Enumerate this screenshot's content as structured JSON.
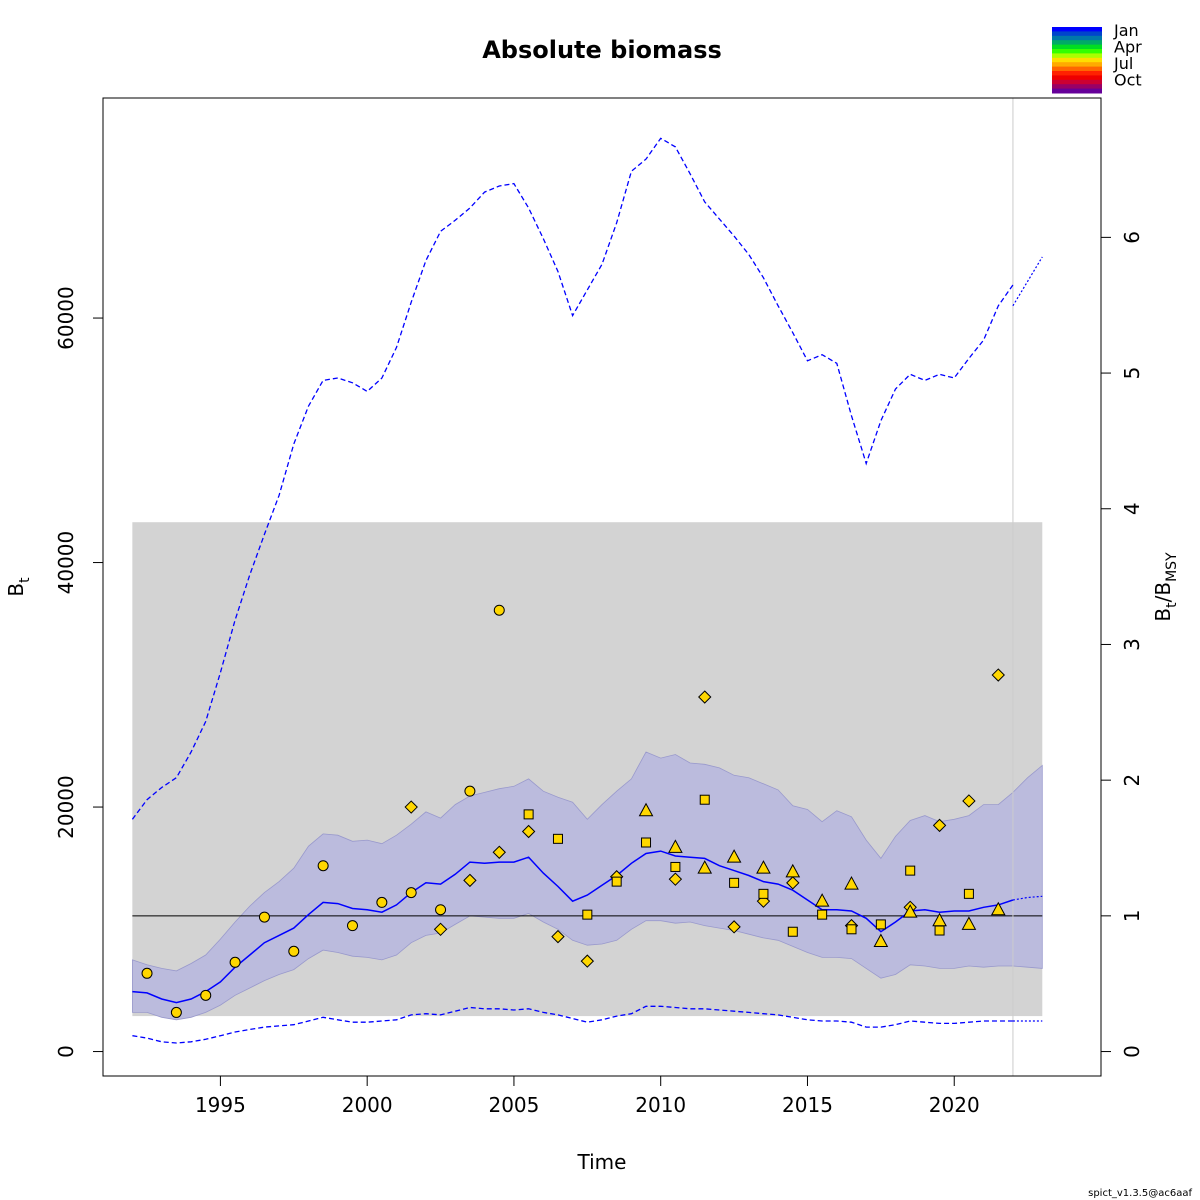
{
  "chart_data": {
    "type": "line",
    "title": "Absolute biomass",
    "xlabel": "Time",
    "ylabel_main": "B",
    "ylabel_sub": "t",
    "ylabel_right_main": "B",
    "ylabel_right_sub1": "t",
    "ylabel_right_slash": "/B",
    "ylabel_right_sub2": "MSY",
    "footer": "spict_v1.3.5@ac6aaf",
    "xlim": [
      1991.0,
      2025.0
    ],
    "ylim": [
      -2000,
      78000
    ],
    "right_axis_scale": 11100,
    "x_ticks": [
      1995,
      2000,
      2005,
      2010,
      2015,
      2020
    ],
    "x_tick_labels": [
      "1995",
      "2000",
      "2005",
      "2010",
      "2015",
      "2020"
    ],
    "y_ticks": [
      0,
      20000,
      40000,
      60000
    ],
    "y_tick_labels": [
      "0",
      "20000",
      "40000",
      "60000"
    ],
    "y2_ticks": [
      0,
      1,
      2,
      3,
      4,
      5,
      6
    ],
    "y2_tick_labels": [
      "0",
      "1",
      "2",
      "3",
      "4",
      "5",
      "6"
    ],
    "legend": {
      "position": "top-right",
      "labels": [
        "Jan",
        "Apr",
        "Jul",
        "Oct"
      ],
      "colors": [
        "#0000ff",
        "#0044cc",
        "#0077aa",
        "#00aa66",
        "#00dd22",
        "#33ff00",
        "#aaff00",
        "#ffdd00",
        "#ffaa00",
        "#ff6600",
        "#ff2200",
        "#ee0000",
        "#cc0033",
        "#990066",
        "#660099"
      ]
    },
    "colors": {
      "estimate": "#0000ff",
      "ci_band": "#bbbbdd",
      "ci_band_stroke": "#9999cc",
      "bmsy_band": "#d3d3d3",
      "points_fill": "#ffd700",
      "bmsy_line": "#000000",
      "vline": "#cccccc"
    },
    "bmsy": 11100,
    "bmsy_band": [
      2900,
      43300
    ],
    "bmsy_band_x": [
      1992.0,
      2023.0
    ],
    "vline_x": 2022.0,
    "estimate": {
      "name": "B_t",
      "x": [
        1992.0,
        1992.5,
        1993.0,
        1993.5,
        1994.0,
        1994.5,
        1995.0,
        1995.5,
        1996.0,
        1996.5,
        1997.0,
        1997.5,
        1998.0,
        1998.5,
        1999.0,
        1999.5,
        2000.0,
        2000.5,
        2001.0,
        2001.5,
        2002.0,
        2002.5,
        2003.0,
        2003.5,
        2004.0,
        2004.5,
        2005.0,
        2005.5,
        2006.0,
        2006.5,
        2007.0,
        2007.5,
        2008.0,
        2008.5,
        2009.0,
        2009.5,
        2010.0,
        2010.5,
        2011.0,
        2011.5,
        2012.0,
        2012.5,
        2013.0,
        2013.5,
        2014.0,
        2014.5,
        2015.0,
        2015.5,
        2016.0,
        2016.5,
        2017.0,
        2017.5,
        2018.0,
        2018.5,
        2019.0,
        2019.5,
        2020.0,
        2020.5,
        2021.0,
        2021.5,
        2022.0
      ],
      "y": [
        4900,
        4800,
        4300,
        4000,
        4300,
        4900,
        5700,
        6900,
        7900,
        8900,
        9500,
        10100,
        11200,
        12200,
        12100,
        11700,
        11600,
        11400,
        12000,
        13000,
        13800,
        13700,
        14500,
        15500,
        15400,
        15500,
        15500,
        15900,
        14600,
        13500,
        12300,
        12800,
        13600,
        14400,
        15400,
        16200,
        16400,
        16000,
        15900,
        15800,
        15200,
        14800,
        14400,
        13900,
        13700,
        13200,
        12400,
        11600,
        11600,
        11500,
        10900,
        9800,
        10600,
        11500,
        11600,
        11400,
        11500,
        11500,
        11800,
        12000,
        12400
      ]
    },
    "estimate_forecast": {
      "x": [
        2022.0,
        2022.5,
        2023.0
      ],
      "y": [
        12400,
        12600,
        12700
      ]
    },
    "ci_upper": {
      "x": [
        1992.0,
        1992.5,
        1993.0,
        1993.5,
        1994.0,
        1994.5,
        1995.0,
        1995.5,
        1996.0,
        1996.5,
        1997.0,
        1997.5,
        1998.0,
        1998.5,
        1999.0,
        1999.5,
        2000.0,
        2000.5,
        2001.0,
        2001.5,
        2002.0,
        2002.5,
        2003.0,
        2003.5,
        2004.0,
        2004.5,
        2005.0,
        2005.5,
        2006.0,
        2006.5,
        2007.0,
        2007.5,
        2008.0,
        2008.5,
        2009.0,
        2009.5,
        2010.0,
        2010.5,
        2011.0,
        2011.5,
        2012.0,
        2012.5,
        2013.0,
        2013.5,
        2014.0,
        2014.5,
        2015.0,
        2015.5,
        2016.0,
        2016.5,
        2017.0,
        2017.5,
        2018.0,
        2018.5,
        2019.0,
        2019.5,
        2020.0,
        2020.5,
        2021.0,
        2021.5,
        2022.0,
        2022.5,
        2023.0
      ],
      "y": [
        7500,
        7100,
        6800,
        6600,
        7200,
        7900,
        9200,
        10600,
        11900,
        13000,
        13900,
        15000,
        16800,
        17800,
        17700,
        17200,
        17300,
        17000,
        17700,
        18600,
        19600,
        19100,
        20200,
        20900,
        21200,
        21500,
        21700,
        22300,
        21300,
        20800,
        20400,
        19000,
        20200,
        21300,
        22300,
        24500,
        24000,
        24300,
        23600,
        23500,
        23200,
        22600,
        22400,
        21900,
        21400,
        20100,
        19800,
        18800,
        19700,
        19200,
        17300,
        15800,
        17600,
        18900,
        19300,
        18800,
        19000,
        19300,
        20200,
        20200,
        21200,
        22400,
        23400
      ]
    },
    "ci_lower": {
      "x": [
        1992.0,
        1992.5,
        1993.0,
        1993.5,
        1994.0,
        1994.5,
        1995.0,
        1995.5,
        1996.0,
        1996.5,
        1997.0,
        1997.5,
        1998.0,
        1998.5,
        1999.0,
        1999.5,
        2000.0,
        2000.5,
        2001.0,
        2001.5,
        2002.0,
        2002.5,
        2003.0,
        2003.5,
        2004.0,
        2004.5,
        2005.0,
        2005.5,
        2006.0,
        2006.5,
        2007.0,
        2007.5,
        2008.0,
        2008.5,
        2009.0,
        2009.5,
        2010.0,
        2010.5,
        2011.0,
        2011.5,
        2012.0,
        2012.5,
        2013.0,
        2013.5,
        2014.0,
        2014.5,
        2015.0,
        2015.5,
        2016.0,
        2016.5,
        2017.0,
        2017.5,
        2018.0,
        2018.5,
        2019.0,
        2019.5,
        2020.0,
        2020.5,
        2021.0,
        2021.5,
        2022.0,
        2022.5,
        2023.0
      ],
      "y": [
        3200,
        3200,
        2800,
        2600,
        2800,
        3200,
        3800,
        4600,
        5200,
        5800,
        6300,
        6700,
        7600,
        8300,
        8100,
        7800,
        7700,
        7500,
        7900,
        8900,
        9500,
        9700,
        10400,
        11100,
        11000,
        10900,
        10900,
        11300,
        10600,
        10000,
        9100,
        8700,
        8800,
        9100,
        10000,
        10700,
        10700,
        10500,
        10600,
        10300,
        10100,
        9900,
        9600,
        9300,
        9100,
        8600,
        8100,
        7700,
        7700,
        7600,
        6800,
        6000,
        6300,
        7100,
        7000,
        6800,
        6800,
        7000,
        6900,
        7000,
        7000,
        6900,
        6800
      ]
    },
    "pi_upper": {
      "x": [
        1992.0,
        1992.5,
        1993.0,
        1993.5,
        1994.0,
        1994.5,
        1995.0,
        1995.5,
        1996.0,
        1996.5,
        1997.0,
        1997.5,
        1998.0,
        1998.5,
        1999.0,
        1999.5,
        2000.0,
        2000.5,
        2001.0,
        2001.5,
        2002.0,
        2002.5,
        2003.0,
        2003.5,
        2004.0,
        2004.5,
        2005.0,
        2005.5,
        2006.0,
        2006.5,
        2007.0,
        2007.5,
        2008.0,
        2008.5,
        2009.0,
        2009.5,
        2010.0,
        2010.5,
        2011.0,
        2011.5,
        2012.0,
        2012.5,
        2013.0,
        2013.5,
        2014.0,
        2014.5,
        2015.0,
        2015.5,
        2016.0,
        2016.5,
        2017.0,
        2017.5,
        2018.0,
        2018.5,
        2019.0,
        2019.5,
        2020.0,
        2020.5,
        2021.0,
        2021.5,
        2022.0
      ],
      "y": [
        19000,
        20600,
        21600,
        22400,
        24500,
        27000,
        31000,
        35300,
        39000,
        42300,
        45500,
        49700,
        52800,
        54900,
        55100,
        54700,
        54000,
        55100,
        57600,
        61300,
        64700,
        67100,
        68000,
        69000,
        70300,
        70800,
        71000,
        69000,
        66500,
        63800,
        60200,
        62300,
        64400,
        67800,
        72000,
        73000,
        74700,
        74000,
        71800,
        69500,
        68100,
        66700,
        65200,
        63300,
        61000,
        58800,
        56500,
        57000,
        56300,
        52000,
        48100,
        51600,
        54200,
        55400,
        54900,
        55400,
        55100,
        56700,
        58200,
        61000,
        62700
      ]
    },
    "pi_upper_forecast": {
      "x": [
        2022.0,
        2022.5,
        2023.0
      ],
      "y": [
        61000,
        63000,
        65000
      ]
    },
    "pi_lower": {
      "x": [
        1992.0,
        1992.5,
        1993.0,
        1993.5,
        1994.0,
        1994.5,
        1995.0,
        1995.5,
        1996.0,
        1996.5,
        1997.0,
        1997.5,
        1998.0,
        1998.5,
        1999.0,
        1999.5,
        2000.0,
        2000.5,
        2001.0,
        2001.5,
        2002.0,
        2002.5,
        2003.0,
        2003.5,
        2004.0,
        2004.5,
        2005.0,
        2005.5,
        2006.0,
        2006.5,
        2007.0,
        2007.5,
        2008.0,
        2008.5,
        2009.0,
        2009.5,
        2010.0,
        2010.5,
        2011.0,
        2011.5,
        2012.0,
        2012.5,
        2013.0,
        2013.5,
        2014.0,
        2014.5,
        2015.0,
        2015.5,
        2016.0,
        2016.5,
        2017.0,
        2017.5,
        2018.0,
        2018.5,
        2019.0,
        2019.5,
        2020.0,
        2020.5,
        2021.0,
        2021.5,
        2022.0
      ],
      "y": [
        1300,
        1100,
        800,
        700,
        800,
        1000,
        1300,
        1600,
        1800,
        2000,
        2100,
        2200,
        2500,
        2800,
        2600,
        2400,
        2400,
        2500,
        2600,
        3000,
        3100,
        3000,
        3300,
        3600,
        3500,
        3500,
        3400,
        3500,
        3200,
        3000,
        2700,
        2400,
        2600,
        2900,
        3100,
        3700,
        3700,
        3600,
        3500,
        3500,
        3400,
        3300,
        3200,
        3100,
        3000,
        2800,
        2600,
        2500,
        2500,
        2400,
        2000,
        2000,
        2200,
        2500,
        2400,
        2300,
        2300,
        2400,
        2500,
        2500,
        2500
      ]
    },
    "pi_lower_forecast": {
      "x": [
        2022.0,
        2022.5,
        2023.0
      ],
      "y": [
        2500,
        2500,
        2500
      ]
    },
    "index_circle": {
      "x": [
        1992.5,
        1993.5,
        1994.5,
        1995.5,
        1996.5,
        1997.5,
        1998.5,
        1999.5,
        2000.5,
        2001.5,
        2002.5,
        2003.5,
        2004.5
      ],
      "y": [
        6400,
        3200,
        4600,
        7300,
        11000,
        8200,
        15200,
        10300,
        12200,
        13000,
        11600,
        21300,
        36100
      ]
    },
    "index_diamond": {
      "x": [
        2001.5,
        2002.5,
        2003.5,
        2004.5,
        2005.5,
        2006.5,
        2007.5,
        2008.5,
        2010.5,
        2011.5,
        2012.5,
        2013.5,
        2014.5,
        2016.5,
        2018.5,
        2019.5,
        2020.5,
        2021.5
      ],
      "y": [
        20000,
        10000,
        14000,
        16300,
        18000,
        9400,
        7400,
        14300,
        14100,
        29000,
        10200,
        12300,
        13800,
        10300,
        11800,
        18500,
        20500,
        30800
      ]
    },
    "index_square": {
      "x": [
        2005.5,
        2006.5,
        2007.5,
        2008.5,
        2009.5,
        2010.5,
        2011.5,
        2012.5,
        2013.5,
        2014.5,
        2015.5,
        2016.5,
        2017.5,
        2018.5,
        2019.5,
        2020.5
      ],
      "y": [
        19400,
        17400,
        11200,
        13900,
        17100,
        15100,
        20600,
        13800,
        12900,
        9800,
        11200,
        10000,
        10400,
        14800,
        9900,
        12900
      ]
    },
    "index_triangle": {
      "x": [
        2009.5,
        2010.5,
        2011.5,
        2012.5,
        2013.5,
        2014.5,
        2015.5,
        2016.5,
        2017.5,
        2018.5,
        2019.5,
        2020.5,
        2021.5
      ],
      "y": [
        19700,
        16700,
        15000,
        15900,
        15000,
        14700,
        12300,
        13700,
        9000,
        11400,
        10700,
        10400,
        11600
      ]
    }
  }
}
